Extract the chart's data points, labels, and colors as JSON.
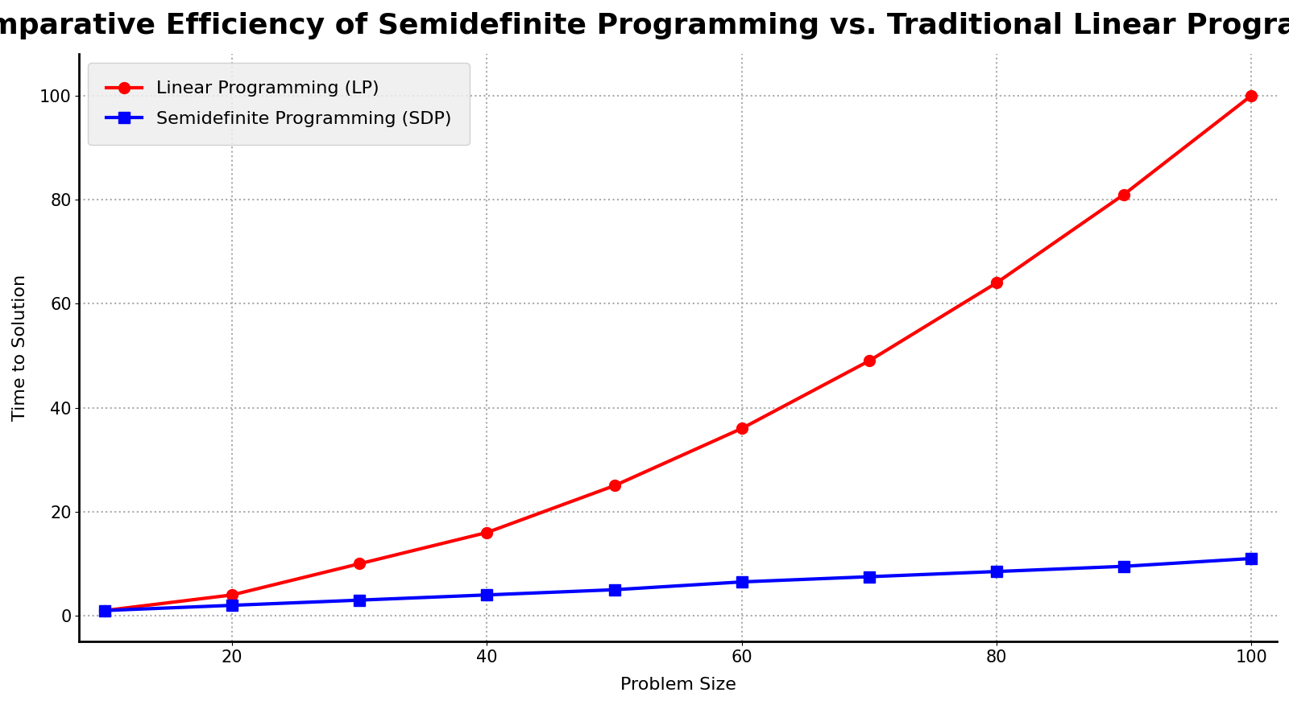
{
  "title": "Comparative Efficiency of Semidefinite Programming vs. Traditional Linear Programming",
  "xlabel": "Problem Size",
  "ylabel": "Time to Solution",
  "x": [
    10,
    20,
    30,
    40,
    50,
    60,
    70,
    80,
    90,
    100
  ],
  "lp_values": [
    1,
    4,
    10,
    16,
    25,
    36,
    49,
    64,
    81,
    100
  ],
  "sdp_values": [
    1,
    2,
    3,
    4,
    5,
    6.5,
    7.5,
    8.5,
    9.5,
    11
  ],
  "lp_color": "#ff0000",
  "sdp_color": "#0000ff",
  "lp_label": "Linear Programming (LP)",
  "sdp_label": "Semidefinite Programming (SDP)",
  "lp_marker": "o",
  "sdp_marker": "s",
  "linewidth": 3,
  "markersize": 10,
  "title_fontsize": 26,
  "label_fontsize": 16,
  "tick_fontsize": 15,
  "legend_fontsize": 16,
  "ylim": [
    -5,
    108
  ],
  "xlim": [
    8,
    102
  ],
  "xticks": [
    20,
    40,
    60,
    80,
    100
  ],
  "yticks": [
    0,
    20,
    40,
    60,
    80,
    100
  ],
  "grid_color": "#aaaaaa",
  "grid_linestyle": ":",
  "grid_alpha": 1.0,
  "background_color": "#ffffff",
  "legend_loc": "upper left",
  "legend_bg": "#eeeeee"
}
